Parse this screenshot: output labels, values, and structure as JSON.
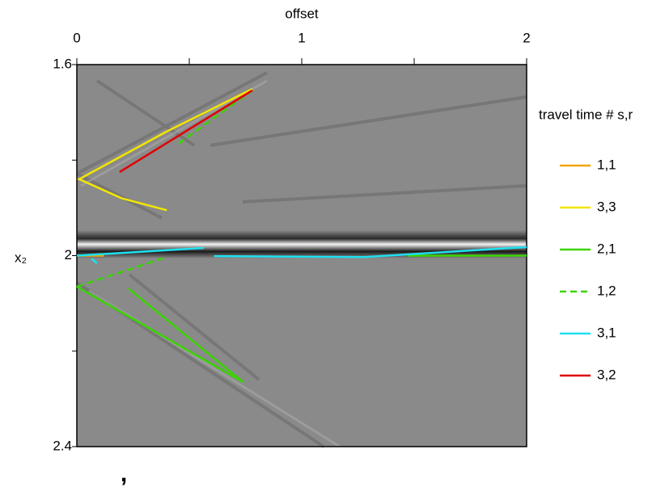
{
  "chart_data": {
    "type": "line",
    "x_label": "offset",
    "y_label": "x₂",
    "legend_title": "travel time # s,r",
    "annotation": ",",
    "xlim": [
      0,
      2
    ],
    "xticks": [
      0,
      1,
      2
    ],
    "xminor_ticks": [
      0.5,
      1.5
    ],
    "ylim": [
      1.6,
      2.4
    ],
    "yticks": [
      1.6,
      2.0,
      2.4
    ],
    "yminor_ticks": [
      1.8,
      2.2
    ],
    "y_inverted": true,
    "series": [
      {
        "name": "1,1",
        "color": "#f5a300",
        "dashed": false,
        "x": [
          0,
          0.12
        ],
        "y": [
          2.0,
          2.0
        ]
      },
      {
        "name": "3,3",
        "color": "#f2e600",
        "dashed": false,
        "x": [
          0.78,
          0.4,
          0.01,
          0.2,
          0.4
        ],
        "y": [
          1.651,
          1.74,
          1.84,
          1.88,
          1.905
        ]
      },
      {
        "name": "2,1",
        "color": "#3ad400",
        "dashed": false,
        "x": [
          0,
          0.74,
          null,
          0.23,
          0.74,
          null,
          1.47,
          2.0
        ],
        "y": [
          2.065,
          2.265,
          null,
          2.069,
          2.265,
          null,
          2.0,
          2.0
        ]
      },
      {
        "name": "1,2",
        "color": "#3ad400",
        "dashed": true,
        "x": [
          0.78,
          0.45,
          null,
          0,
          0.4
        ],
        "y": [
          1.654,
          1.766,
          null,
          2.065,
          2.003
        ]
      },
      {
        "name": "3,1",
        "color": "#1ee0f0",
        "dashed": false,
        "x": [
          0,
          0.565,
          null,
          0.065,
          0.09,
          null,
          0.61,
          1.28,
          2.0
        ],
        "y": [
          2.0,
          1.984,
          null,
          2.006,
          2.016,
          null,
          2.001,
          2.003,
          1.982
        ]
      },
      {
        "name": "3,2",
        "color": "#e00000",
        "dashed": false,
        "x": [
          0.78,
          0.19
        ],
        "y": [
          1.654,
          1.825
        ]
      }
    ]
  }
}
